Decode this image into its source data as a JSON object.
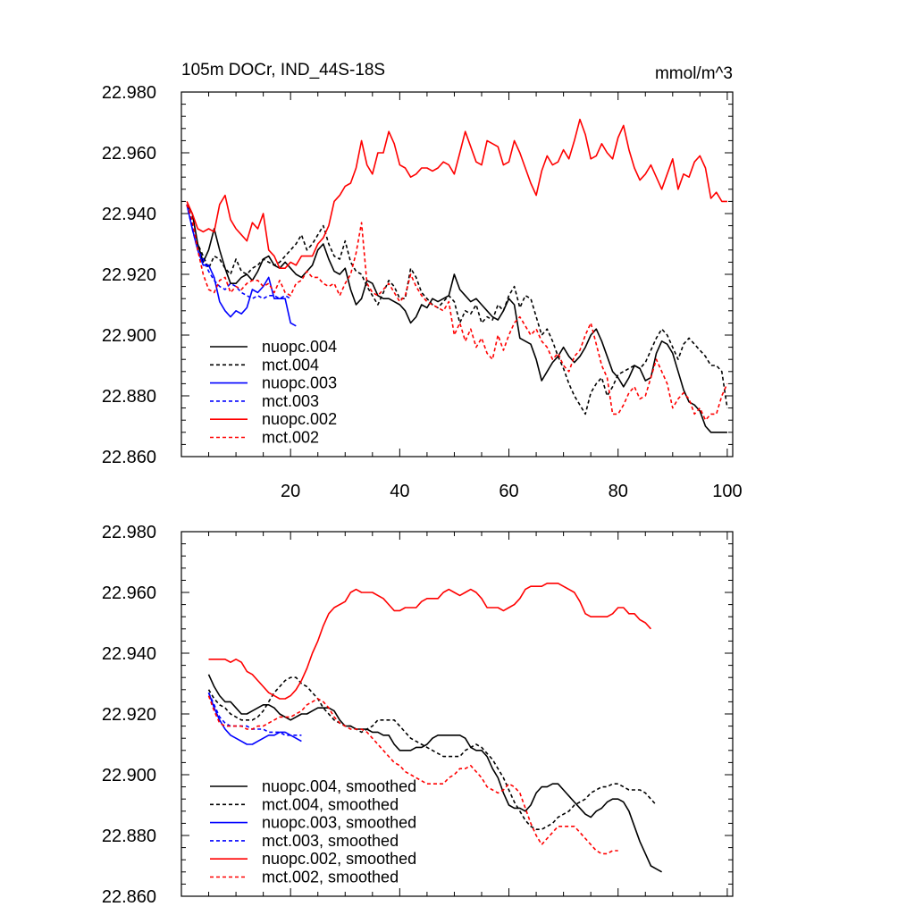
{
  "chart_data": [
    {
      "type": "line",
      "title_left": "105m DOCr, IND_44S-18S",
      "title_right": "mmol/m^3",
      "ylim": [
        22.86,
        22.98
      ],
      "xlim": [
        0,
        101
      ],
      "yticks": [
        22.86,
        22.88,
        22.9,
        22.92,
        22.94,
        22.96,
        22.98
      ],
      "ytick_labels": [
        "22.860",
        "22.880",
        "22.900",
        "22.920",
        "22.940",
        "22.960",
        "22.980"
      ],
      "xticks": [
        20,
        40,
        60,
        80,
        100
      ],
      "xtick_labels": [
        "20",
        "40",
        "60",
        "80",
        "100"
      ],
      "show_xtick_labels": true,
      "series": [
        {
          "name": "nuopc.004",
          "color": "#000000",
          "dash": "solid",
          "x0": 1,
          "values": [
            22.943,
            22.94,
            22.93,
            22.924,
            22.928,
            22.935,
            22.928,
            22.922,
            22.917,
            22.917,
            22.919,
            22.92,
            22.918,
            22.921,
            22.925,
            22.926,
            22.923,
            22.922,
            22.924,
            22.922,
            22.92,
            22.919,
            22.921,
            22.923,
            22.928,
            22.93,
            22.925,
            22.921,
            22.92,
            22.922,
            22.915,
            22.91,
            22.912,
            22.918,
            22.917,
            22.913,
            22.912,
            22.912,
            22.911,
            22.91,
            22.908,
            22.904,
            22.906,
            22.91,
            22.909,
            22.912,
            22.911,
            22.912,
            22.913,
            22.92,
            22.915,
            22.913,
            22.911,
            22.912,
            22.91,
            22.908,
            22.906,
            22.905,
            22.908,
            22.912,
            22.91,
            22.899,
            22.898,
            22.897,
            22.892,
            22.885,
            22.888,
            22.891,
            22.893,
            22.896,
            22.893,
            22.891,
            22.893,
            22.896,
            22.9,
            22.902,
            22.898,
            22.893,
            22.888,
            22.886,
            22.883,
            22.886,
            22.89,
            22.889,
            22.885,
            22.886,
            22.894,
            22.898,
            22.897,
            22.894,
            22.888,
            22.882,
            22.878,
            22.877,
            22.875,
            22.87,
            22.868,
            22.868,
            22.868,
            22.868
          ]
        },
        {
          "name": "mct.004",
          "color": "#000000",
          "dash": "dashed",
          "x0": 1,
          "values": [
            22.943,
            22.936,
            22.93,
            22.926,
            22.922,
            22.926,
            22.925,
            22.922,
            22.92,
            22.925,
            22.921,
            22.92,
            22.922,
            22.923,
            22.925,
            22.924,
            22.923,
            22.924,
            22.926,
            22.928,
            22.93,
            22.933,
            22.928,
            22.93,
            22.933,
            22.936,
            22.93,
            22.926,
            22.925,
            22.931,
            22.924,
            22.921,
            22.92,
            22.916,
            22.913,
            22.91,
            22.914,
            22.918,
            22.916,
            22.912,
            22.912,
            22.922,
            22.919,
            22.914,
            22.912,
            22.91,
            22.909,
            22.911,
            22.913,
            22.911,
            22.904,
            22.908,
            22.907,
            22.91,
            22.904,
            22.906,
            22.905,
            22.91,
            22.908,
            22.913,
            22.916,
            22.909,
            22.913,
            22.912,
            22.906,
            22.9,
            22.902,
            22.898,
            22.893,
            22.889,
            22.884,
            22.88,
            22.877,
            22.874,
            22.881,
            22.884,
            22.886,
            22.88,
            22.883,
            22.887,
            22.888,
            22.889,
            22.89,
            22.889,
            22.891,
            22.895,
            22.899,
            22.902,
            22.9,
            22.896,
            22.892,
            22.897,
            22.899,
            22.897,
            22.895,
            22.893,
            22.89,
            22.89,
            22.888,
            22.876
          ]
        },
        {
          "name": "nuopc.003",
          "color": "#0000ff",
          "dash": "solid",
          "x0": 1,
          "values": [
            22.943,
            22.935,
            22.928,
            22.923,
            22.923,
            22.919,
            22.911,
            22.908,
            22.906,
            22.908,
            22.907,
            22.909,
            22.915,
            22.914,
            22.916,
            22.919,
            22.912,
            22.912,
            22.912,
            22.904,
            22.903
          ]
        },
        {
          "name": "mct.003",
          "color": "#0000ff",
          "dash": "dashed",
          "x0": 1,
          "values": [
            22.943,
            22.935,
            22.928,
            22.925,
            22.921,
            22.918,
            22.916,
            22.915,
            22.917,
            22.916,
            22.914,
            22.913,
            22.912,
            22.913,
            22.912,
            22.913,
            22.913,
            22.912,
            22.913,
            22.912
          ]
        },
        {
          "name": "nuopc.002",
          "color": "#ff0000",
          "dash": "solid",
          "x0": 1,
          "values": [
            22.944,
            22.94,
            22.935,
            22.934,
            22.935,
            22.934,
            22.943,
            22.946,
            22.938,
            22.935,
            22.933,
            22.931,
            22.937,
            22.935,
            22.94,
            22.928,
            22.926,
            22.922,
            22.922,
            22.924,
            22.923,
            22.926,
            22.926,
            22.926,
            22.93,
            22.932,
            22.936,
            22.944,
            22.946,
            22.949,
            22.95,
            22.955,
            22.964,
            22.956,
            22.953,
            22.96,
            22.96,
            22.967,
            22.963,
            22.956,
            22.955,
            22.952,
            22.953,
            22.955,
            22.955,
            22.954,
            22.955,
            22.957,
            22.956,
            22.953,
            22.96,
            22.967,
            22.962,
            22.957,
            22.956,
            22.964,
            22.963,
            22.962,
            22.956,
            22.957,
            22.964,
            22.96,
            22.955,
            22.95,
            22.946,
            22.954,
            22.959,
            22.956,
            22.957,
            22.961,
            22.958,
            22.964,
            22.971,
            22.966,
            22.958,
            22.959,
            22.963,
            22.96,
            22.958,
            22.965,
            22.969,
            22.961,
            22.955,
            22.951,
            22.953,
            22.956,
            22.952,
            22.948,
            22.953,
            22.958,
            22.948,
            22.953,
            22.952,
            22.957,
            22.959,
            22.955,
            22.945,
            22.947,
            22.944,
            22.944
          ]
        },
        {
          "name": "mct.002",
          "color": "#ff0000",
          "dash": "dashed",
          "x0": 1,
          "values": [
            22.943,
            22.938,
            22.928,
            22.92,
            22.915,
            22.914,
            22.918,
            22.919,
            22.914,
            22.916,
            22.915,
            22.917,
            22.918,
            22.918,
            22.916,
            22.917,
            22.914,
            22.918,
            22.914,
            22.913,
            22.917,
            22.918,
            22.921,
            22.919,
            22.919,
            22.917,
            22.916,
            22.917,
            22.913,
            22.917,
            22.92,
            22.927,
            22.937,
            22.917,
            22.914,
            22.913,
            22.915,
            22.917,
            22.914,
            22.911,
            22.913,
            22.92,
            22.916,
            22.913,
            22.911,
            22.91,
            22.909,
            22.908,
            22.911,
            22.9,
            22.904,
            22.898,
            22.902,
            22.896,
            22.899,
            22.894,
            22.892,
            22.9,
            22.895,
            22.9,
            22.904,
            22.906,
            22.903,
            22.9,
            22.902,
            22.898,
            22.896,
            22.892,
            22.894,
            22.89,
            22.888,
            22.893,
            22.895,
            22.9,
            22.904,
            22.897,
            22.89,
            22.886,
            22.874,
            22.874,
            22.877,
            22.881,
            22.883,
            22.879,
            22.88,
            22.886,
            22.892,
            22.888,
            22.884,
            22.876,
            22.879,
            22.881,
            22.879,
            22.874,
            22.876,
            22.872,
            22.874,
            22.874,
            22.88,
            22.884
          ]
        }
      ],
      "legend": {
        "placement": "bottom-left",
        "entries": [
          "nuopc.004",
          "mct.004",
          "nuopc.003",
          "mct.003",
          "nuopc.002",
          "mct.002"
        ]
      }
    },
    {
      "type": "line",
      "ylim": [
        22.86,
        22.98
      ],
      "xlim": [
        0,
        101
      ],
      "yticks": [
        22.86,
        22.88,
        22.9,
        22.92,
        22.94,
        22.96,
        22.98
      ],
      "ytick_labels": [
        "22.860",
        "22.880",
        "22.900",
        "22.920",
        "22.940",
        "22.960",
        "22.980"
      ],
      "xticks": [
        20,
        40,
        60,
        80,
        100
      ],
      "show_xtick_labels": false,
      "series": [
        {
          "name": "nuopc.004, smoothed",
          "color": "#000000",
          "dash": "solid",
          "x0": 5,
          "values": [
            22.933,
            22.929,
            22.926,
            22.924,
            22.924,
            22.922,
            22.92,
            22.92,
            22.921,
            22.922,
            22.923,
            22.923,
            22.922,
            22.92,
            22.919,
            22.918,
            22.919,
            22.92,
            22.92,
            22.921,
            22.922,
            22.922,
            22.922,
            22.921,
            22.918,
            22.916,
            22.916,
            22.915,
            22.915,
            22.915,
            22.914,
            22.914,
            22.913,
            22.913,
            22.91,
            22.908,
            22.908,
            22.908,
            22.909,
            22.909,
            22.91,
            22.912,
            22.913,
            22.913,
            22.913,
            22.913,
            22.913,
            22.912,
            22.909,
            22.908,
            22.908,
            22.906,
            22.902,
            22.899,
            22.894,
            22.89,
            22.889,
            22.889,
            22.888,
            22.89,
            22.894,
            22.896,
            22.896,
            22.897,
            22.897,
            22.895,
            22.893,
            22.891,
            22.889,
            22.887,
            22.886,
            22.888,
            22.889,
            22.891,
            22.892,
            22.892,
            22.891,
            22.888,
            22.883,
            22.878,
            22.874,
            22.87,
            22.869,
            22.868
          ]
        },
        {
          "name": "mct.004, smoothed",
          "color": "#000000",
          "dash": "dashed",
          "x0": 5,
          "values": [
            22.928,
            22.925,
            22.923,
            22.922,
            22.92,
            22.919,
            22.918,
            22.918,
            22.918,
            22.919,
            22.921,
            22.924,
            22.927,
            22.929,
            22.931,
            22.932,
            22.932,
            22.93,
            22.929,
            22.927,
            22.925,
            22.922,
            22.92,
            22.918,
            22.917,
            22.916,
            22.916,
            22.915,
            22.914,
            22.915,
            22.916,
            22.918,
            22.918,
            22.918,
            22.918,
            22.916,
            22.914,
            22.912,
            22.911,
            22.91,
            22.909,
            22.908,
            22.907,
            22.906,
            22.906,
            22.906,
            22.906,
            22.908,
            22.909,
            22.91,
            22.909,
            22.907,
            22.905,
            22.902,
            22.899,
            22.895,
            22.891,
            22.888,
            22.885,
            22.883,
            22.882,
            22.882,
            22.883,
            22.884,
            22.886,
            22.887,
            22.888,
            22.89,
            22.891,
            22.892,
            22.894,
            22.895,
            22.896,
            22.896,
            22.897,
            22.897,
            22.896,
            22.895,
            22.895,
            22.895,
            22.894,
            22.892,
            22.89
          ]
        },
        {
          "name": "nuopc.003, smoothed",
          "color": "#0000ff",
          "dash": "solid",
          "x0": 5,
          "values": [
            22.927,
            22.922,
            22.918,
            22.915,
            22.913,
            22.912,
            22.911,
            22.91,
            22.91,
            22.911,
            22.912,
            22.913,
            22.913,
            22.914,
            22.914,
            22.913,
            22.912,
            22.911
          ]
        },
        {
          "name": "mct.003, smoothed",
          "color": "#0000ff",
          "dash": "dashed",
          "x0": 5,
          "values": [
            22.927,
            22.923,
            22.919,
            22.917,
            22.916,
            22.916,
            22.916,
            22.916,
            22.915,
            22.915,
            22.915,
            22.914,
            22.914,
            22.914,
            22.913,
            22.913,
            22.913,
            22.913
          ]
        },
        {
          "name": "nuopc.002, smoothed",
          "color": "#ff0000",
          "dash": "solid",
          "x0": 5,
          "values": [
            22.938,
            22.938,
            22.938,
            22.938,
            22.937,
            22.938,
            22.937,
            22.934,
            22.933,
            22.931,
            22.929,
            22.927,
            22.926,
            22.925,
            22.925,
            22.926,
            22.928,
            22.931,
            22.935,
            22.94,
            22.944,
            22.949,
            22.953,
            22.955,
            22.956,
            22.957,
            22.96,
            22.961,
            22.96,
            22.96,
            22.96,
            22.959,
            22.958,
            22.956,
            22.954,
            22.954,
            22.955,
            22.955,
            22.955,
            22.957,
            22.958,
            22.958,
            22.958,
            22.96,
            22.961,
            22.96,
            22.959,
            22.96,
            22.961,
            22.96,
            22.958,
            22.955,
            22.955,
            22.955,
            22.954,
            22.955,
            22.956,
            22.958,
            22.961,
            22.962,
            22.962,
            22.962,
            22.963,
            22.963,
            22.963,
            22.962,
            22.961,
            22.96,
            22.957,
            22.953,
            22.952,
            22.952,
            22.952,
            22.952,
            22.953,
            22.955,
            22.955,
            22.953,
            22.953,
            22.951,
            22.95,
            22.948
          ]
        },
        {
          "name": "mct.002, smoothed",
          "color": "#ff0000",
          "dash": "dashed",
          "x0": 5,
          "values": [
            22.926,
            22.921,
            22.917,
            22.916,
            22.916,
            22.916,
            22.916,
            22.915,
            22.915,
            22.916,
            22.916,
            22.917,
            22.918,
            22.919,
            22.919,
            22.919,
            22.92,
            22.921,
            22.923,
            22.924,
            22.925,
            22.924,
            22.922,
            22.919,
            22.917,
            22.916,
            22.915,
            22.915,
            22.915,
            22.914,
            22.912,
            22.91,
            22.908,
            22.906,
            22.904,
            22.903,
            22.901,
            22.9,
            22.899,
            22.898,
            22.897,
            22.897,
            22.897,
            22.897,
            22.899,
            22.9,
            22.902,
            22.902,
            22.903,
            22.901,
            22.899,
            22.896,
            22.895,
            22.894,
            22.895,
            22.897,
            22.896,
            22.894,
            22.889,
            22.884,
            22.88,
            22.877,
            22.879,
            22.881,
            22.883,
            22.883,
            22.883,
            22.883,
            22.881,
            22.879,
            22.877,
            22.875,
            22.874,
            22.874,
            22.875,
            22.875
          ]
        }
      ],
      "legend": {
        "placement": "bottom-left",
        "entries": [
          "nuopc.004, smoothed",
          "mct.004, smoothed",
          "nuopc.003, smoothed",
          "mct.003, smoothed",
          "nuopc.002, smoothed",
          "mct.002, smoothed"
        ]
      }
    }
  ]
}
